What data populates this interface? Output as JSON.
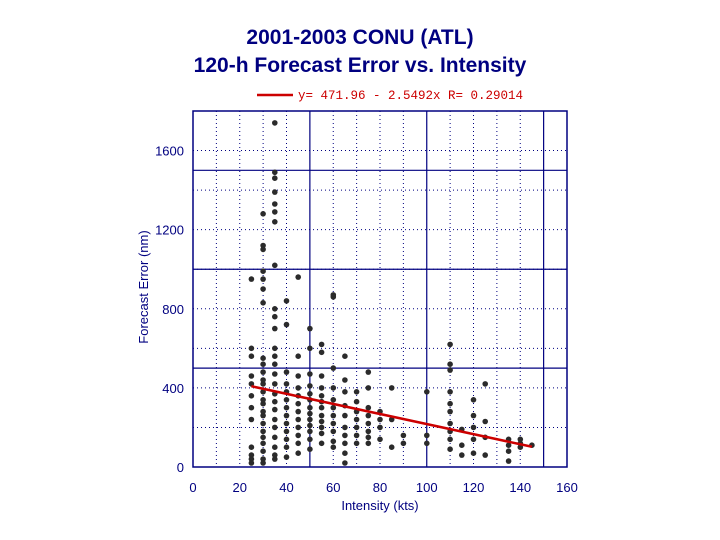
{
  "chart_data": {
    "type": "scatter",
    "title": "2001-2003 CONU (ATL)",
    "subtitle": "120-h Forecast Error vs. Intensity",
    "xlabel": "Intensity (kts)",
    "ylabel": "Forecast Error (nm)",
    "xlim": [
      0,
      160
    ],
    "ylim": [
      0,
      1800
    ],
    "xticks": [
      0,
      20,
      40,
      60,
      80,
      100,
      120,
      140,
      160
    ],
    "yticks": [
      0,
      400,
      800,
      1200,
      1600
    ],
    "grid": true,
    "legend": {
      "position": "top-center",
      "entries": [
        "y= 471.96 - 2.5492x  R= 0.29014"
      ]
    },
    "fit": {
      "intercept": 471.96,
      "slope": -2.5492,
      "r": 0.29014,
      "x_range": [
        25,
        145
      ]
    },
    "series": [
      {
        "name": "120-h forecasts",
        "points": [
          [
            25,
            20
          ],
          [
            25,
            40
          ],
          [
            25,
            60
          ],
          [
            25,
            100
          ],
          [
            25,
            240
          ],
          [
            25,
            300
          ],
          [
            25,
            360
          ],
          [
            25,
            420
          ],
          [
            25,
            460
          ],
          [
            25,
            560
          ],
          [
            25,
            600
          ],
          [
            25,
            950
          ],
          [
            30,
            20
          ],
          [
            30,
            40
          ],
          [
            30,
            80
          ],
          [
            30,
            120
          ],
          [
            30,
            150
          ],
          [
            30,
            180
          ],
          [
            30,
            220
          ],
          [
            30,
            260
          ],
          [
            30,
            280
          ],
          [
            30,
            320
          ],
          [
            30,
            340
          ],
          [
            30,
            380
          ],
          [
            30,
            420
          ],
          [
            30,
            440
          ],
          [
            30,
            480
          ],
          [
            30,
            520
          ],
          [
            30,
            550
          ],
          [
            30,
            830
          ],
          [
            30,
            900
          ],
          [
            30,
            950
          ],
          [
            30,
            990
          ],
          [
            30,
            1100
          ],
          [
            30,
            1120
          ],
          [
            30,
            1280
          ],
          [
            35,
            40
          ],
          [
            35,
            60
          ],
          [
            35,
            100
          ],
          [
            35,
            150
          ],
          [
            35,
            200
          ],
          [
            35,
            240
          ],
          [
            35,
            290
          ],
          [
            35,
            330
          ],
          [
            35,
            370
          ],
          [
            35,
            420
          ],
          [
            35,
            470
          ],
          [
            35,
            520
          ],
          [
            35,
            560
          ],
          [
            35,
            600
          ],
          [
            35,
            700
          ],
          [
            35,
            760
          ],
          [
            35,
            800
          ],
          [
            35,
            1020
          ],
          [
            35,
            1240
          ],
          [
            35,
            1290
          ],
          [
            35,
            1330
          ],
          [
            35,
            1390
          ],
          [
            35,
            1460
          ],
          [
            35,
            1490
          ],
          [
            35,
            1740
          ],
          [
            40,
            50
          ],
          [
            40,
            100
          ],
          [
            40,
            140
          ],
          [
            40,
            180
          ],
          [
            40,
            220
          ],
          [
            40,
            260
          ],
          [
            40,
            300
          ],
          [
            40,
            340
          ],
          [
            40,
            380
          ],
          [
            40,
            420
          ],
          [
            40,
            480
          ],
          [
            40,
            720
          ],
          [
            40,
            840
          ],
          [
            45,
            70
          ],
          [
            45,
            120
          ],
          [
            45,
            160
          ],
          [
            45,
            200
          ],
          [
            45,
            240
          ],
          [
            45,
            280
          ],
          [
            45,
            320
          ],
          [
            45,
            360
          ],
          [
            45,
            400
          ],
          [
            45,
            460
          ],
          [
            45,
            560
          ],
          [
            45,
            960
          ],
          [
            50,
            90
          ],
          [
            50,
            140
          ],
          [
            50,
            180
          ],
          [
            50,
            210
          ],
          [
            50,
            240
          ],
          [
            50,
            270
          ],
          [
            50,
            300
          ],
          [
            50,
            340
          ],
          [
            50,
            370
          ],
          [
            50,
            410
          ],
          [
            50,
            470
          ],
          [
            50,
            600
          ],
          [
            50,
            700
          ],
          [
            55,
            120
          ],
          [
            55,
            170
          ],
          [
            55,
            200
          ],
          [
            55,
            230
          ],
          [
            55,
            260
          ],
          [
            55,
            300
          ],
          [
            55,
            330
          ],
          [
            55,
            360
          ],
          [
            55,
            400
          ],
          [
            55,
            460
          ],
          [
            55,
            580
          ],
          [
            55,
            620
          ],
          [
            60,
            100
          ],
          [
            60,
            130
          ],
          [
            60,
            180
          ],
          [
            60,
            220
          ],
          [
            60,
            260
          ],
          [
            60,
            300
          ],
          [
            60,
            340
          ],
          [
            60,
            400
          ],
          [
            60,
            500
          ],
          [
            60,
            860
          ],
          [
            60,
            870
          ],
          [
            65,
            20
          ],
          [
            65,
            70
          ],
          [
            65,
            120
          ],
          [
            65,
            160
          ],
          [
            65,
            200
          ],
          [
            65,
            260
          ],
          [
            65,
            310
          ],
          [
            65,
            380
          ],
          [
            65,
            440
          ],
          [
            65,
            560
          ],
          [
            70,
            120
          ],
          [
            70,
            160
          ],
          [
            70,
            200
          ],
          [
            70,
            240
          ],
          [
            70,
            280
          ],
          [
            70,
            330
          ],
          [
            70,
            380
          ],
          [
            75,
            120
          ],
          [
            75,
            150
          ],
          [
            75,
            180
          ],
          [
            75,
            220
          ],
          [
            75,
            260
          ],
          [
            75,
            300
          ],
          [
            75,
            400
          ],
          [
            75,
            480
          ],
          [
            80,
            140
          ],
          [
            80,
            200
          ],
          [
            80,
            240
          ],
          [
            80,
            280
          ],
          [
            85,
            100
          ],
          [
            85,
            240
          ],
          [
            85,
            400
          ],
          [
            90,
            120
          ],
          [
            90,
            160
          ],
          [
            100,
            120
          ],
          [
            100,
            160
          ],
          [
            100,
            380
          ],
          [
            110,
            90
          ],
          [
            110,
            140
          ],
          [
            110,
            180
          ],
          [
            110,
            220
          ],
          [
            110,
            280
          ],
          [
            110,
            320
          ],
          [
            110,
            380
          ],
          [
            110,
            490
          ],
          [
            110,
            520
          ],
          [
            110,
            620
          ],
          [
            115,
            60
          ],
          [
            115,
            110
          ],
          [
            115,
            190
          ],
          [
            120,
            70
          ],
          [
            120,
            140
          ],
          [
            120,
            200
          ],
          [
            120,
            260
          ],
          [
            120,
            340
          ],
          [
            125,
            60
          ],
          [
            125,
            150
          ],
          [
            125,
            230
          ],
          [
            125,
            420
          ],
          [
            135,
            30
          ],
          [
            135,
            80
          ],
          [
            135,
            110
          ],
          [
            135,
            140
          ],
          [
            140,
            100
          ],
          [
            140,
            120
          ],
          [
            140,
            140
          ],
          [
            145,
            110
          ]
        ]
      }
    ]
  }
}
